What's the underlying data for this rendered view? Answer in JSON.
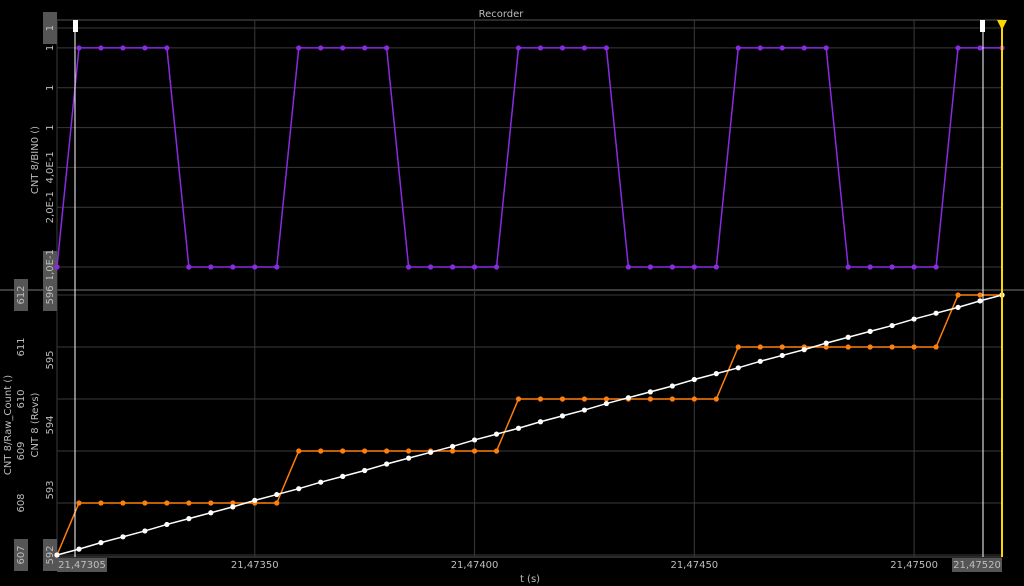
{
  "chart_data": [
    {
      "type": "line",
      "title": "Recorder",
      "x": [
        21.47305,
        21.4731,
        21.47315,
        21.4732,
        21.47325,
        21.4733,
        21.47335,
        21.4734,
        21.47345,
        21.4735,
        21.47355,
        21.4736,
        21.47365,
        21.4737,
        21.47375,
        21.4738,
        21.47385,
        21.4739,
        21.47395,
        21.474,
        21.47405,
        21.4741,
        21.47415,
        21.4742,
        21.47425,
        21.4743,
        21.47435,
        21.4744,
        21.47445,
        21.4745,
        21.47455,
        21.4746,
        21.47465,
        21.4747,
        21.47475,
        21.4748,
        21.47485,
        21.4749,
        21.47495,
        21.475,
        21.47505,
        21.4751,
        21.47515,
        21.4752
      ],
      "series": [
        {
          "name": "CNT 8/BIN0 ()",
          "color": "#8a2be2",
          "values": [
            -0.1,
            1,
            1,
            1,
            1,
            1,
            -0.1,
            -0.1,
            -0.1,
            -0.1,
            -0.1,
            1,
            1,
            1,
            1,
            1,
            -0.1,
            -0.1,
            -0.1,
            -0.1,
            -0.1,
            1,
            1,
            1,
            1,
            1,
            -0.1,
            -0.1,
            -0.1,
            -0.1,
            -0.1,
            1,
            1,
            1,
            1,
            1,
            -0.1,
            -0.1,
            -0.1,
            -0.1,
            -0.1,
            1,
            1,
            1
          ]
        }
      ],
      "xlim": [
        21.47305,
        21.4752
      ],
      "ylim": [
        -0.1,
        1.1
      ],
      "yticks": [
        {
          "value": -0.1,
          "label": "-1,0E-1"
        },
        {
          "value": 0.2,
          "label": "2,0E-1"
        },
        {
          "value": 0.4,
          "label": "4,0E-1"
        },
        {
          "value": 0.6,
          "label": "1"
        },
        {
          "value": 0.8,
          "label": "1"
        },
        {
          "value": 1.0,
          "label": "1"
        },
        {
          "value": 1.1,
          "label": "1"
        }
      ],
      "grid": true
    },
    {
      "type": "line",
      "xlabel": "t (s)",
      "x": [
        21.47305,
        21.4731,
        21.47315,
        21.4732,
        21.47325,
        21.4733,
        21.47335,
        21.4734,
        21.47345,
        21.4735,
        21.47355,
        21.4736,
        21.47365,
        21.4737,
        21.47375,
        21.4738,
        21.47385,
        21.4739,
        21.47395,
        21.474,
        21.47405,
        21.4741,
        21.47415,
        21.4742,
        21.47425,
        21.4743,
        21.47435,
        21.4744,
        21.47445,
        21.4745,
        21.47455,
        21.4746,
        21.47465,
        21.4747,
        21.47475,
        21.4748,
        21.47485,
        21.4749,
        21.47495,
        21.475,
        21.47505,
        21.4751,
        21.47515,
        21.4752
      ],
      "series": [
        {
          "name": "CNT 8/Raw_Count ()",
          "color": "#ff7f0e",
          "values": [
            607,
            608,
            608,
            608,
            608,
            608,
            608,
            608,
            608,
            608,
            608,
            609,
            609,
            609,
            609,
            609,
            609,
            609,
            609,
            609,
            609,
            610,
            610,
            610,
            610,
            610,
            610,
            610,
            610,
            610,
            610,
            611,
            611,
            611,
            611,
            611,
            611,
            611,
            611,
            611,
            611,
            612,
            612,
            612
          ]
        },
        {
          "name": "CNT 8 (Revs)",
          "color": "#ffffff",
          "axis": "y2",
          "values": [
            592.0,
            592.09,
            592.19,
            592.28,
            592.37,
            592.47,
            592.56,
            592.65,
            592.74,
            592.84,
            592.93,
            593.02,
            593.12,
            593.21,
            593.3,
            593.4,
            593.49,
            593.58,
            593.67,
            593.77,
            593.86,
            593.95,
            594.05,
            594.14,
            594.23,
            594.33,
            594.42,
            594.51,
            594.6,
            594.7,
            594.79,
            594.88,
            594.98,
            595.07,
            595.16,
            595.26,
            595.35,
            595.44,
            595.53,
            595.63,
            595.72,
            595.81,
            595.91,
            596.0
          ]
        }
      ],
      "xlim": [
        21.47305,
        21.4752
      ],
      "xticks": [
        {
          "value": 21.47305,
          "label": "21,47305"
        },
        {
          "value": 21.4735,
          "label": "21,47350"
        },
        {
          "value": 21.474,
          "label": "21,47400"
        },
        {
          "value": 21.4745,
          "label": "21,47450"
        },
        {
          "value": 21.475,
          "label": "21,47500"
        },
        {
          "value": 21.4752,
          "label": "21,47520"
        }
      ],
      "ylim": [
        607,
        612
      ],
      "yticks": [
        607,
        608,
        609,
        610,
        611,
        612
      ],
      "y2lim": [
        592,
        596
      ],
      "y2ticks": [
        592,
        593,
        594,
        595,
        596
      ],
      "grid": true
    }
  ]
}
